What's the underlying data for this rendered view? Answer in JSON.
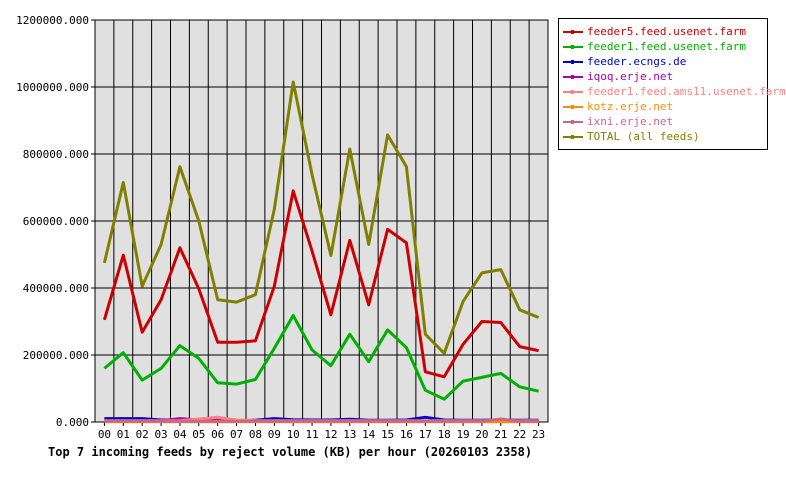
{
  "chart_data": {
    "type": "line",
    "xlabel": "Top 7 incoming feeds by reject volume (KB) per hour (20260103 2358)",
    "ylabel": "",
    "ylim": [
      0,
      1200000
    ],
    "yticks": [
      "0.000",
      "200000.000",
      "400000.000",
      "600000.000",
      "800000.000",
      "1000000.000",
      "1200000.000"
    ],
    "ytick_values": [
      0,
      200000,
      400000,
      600000,
      800000,
      1000000,
      1200000
    ],
    "categories": [
      "00",
      "01",
      "02",
      "03",
      "04",
      "05",
      "06",
      "07",
      "08",
      "09",
      "10",
      "11",
      "12",
      "13",
      "14",
      "15",
      "16",
      "17",
      "18",
      "19",
      "20",
      "21",
      "22",
      "23"
    ],
    "grid": true,
    "legend": "right",
    "series": [
      {
        "name": "feeder5.feed.usenet.farm",
        "color": "#cc0000",
        "values": [
          305000,
          498000,
          268000,
          365000,
          520000,
          398000,
          238000,
          238000,
          242000,
          405000,
          690000,
          510000,
          320000,
          542000,
          350000,
          575000,
          535000,
          150000,
          135000,
          232000,
          300000,
          297000,
          225000,
          213000
        ]
      },
      {
        "name": "feeder1.feed.usenet.farm",
        "color": "#00b000",
        "values": [
          160000,
          207000,
          125000,
          160000,
          228000,
          190000,
          117000,
          113000,
          127000,
          220000,
          318000,
          215000,
          168000,
          262000,
          180000,
          275000,
          222000,
          95000,
          68000,
          122000,
          133000,
          145000,
          105000,
          92000
        ]
      },
      {
        "name": "feeder.ecngs.de",
        "color": "#0000cc",
        "values": [
          10000,
          10000,
          10000,
          6000,
          6000,
          6000,
          5000,
          4000,
          5000,
          10000,
          7000,
          6000,
          6000,
          8000,
          5000,
          5000,
          6000,
          14000,
          6000,
          5000,
          5000,
          6000,
          5000,
          5000
        ]
      },
      {
        "name": "iqoq.erje.net",
        "color": "#aa00aa",
        "values": [
          3000,
          3000,
          3000,
          4000,
          10000,
          6000,
          6000,
          3000,
          3000,
          3000,
          3000,
          3000,
          3000,
          4000,
          3000,
          3000,
          3000,
          3000,
          3000,
          3000,
          3000,
          3000,
          3000,
          3000
        ]
      },
      {
        "name": "feeder1.feed.ams11.usenet.farm",
        "color": "#ff8080",
        "values": [
          4000,
          4000,
          4000,
          4000,
          4000,
          9000,
          14000,
          6000,
          4000,
          4000,
          4000,
          4000,
          4000,
          4000,
          4000,
          4000,
          4000,
          4000,
          4000,
          4000,
          4000,
          4000,
          4000,
          4000
        ]
      },
      {
        "name": "kotz.erje.net",
        "color": "#ff8c00",
        "values": [
          1000,
          1000,
          1000,
          1000,
          1000,
          1000,
          1000,
          1000,
          1000,
          1000,
          1000,
          1000,
          1000,
          1000,
          1000,
          1000,
          1000,
          1000,
          1000,
          1000,
          1000,
          1000,
          1000,
          1000
        ]
      },
      {
        "name": "ixni.erje.net",
        "color": "#cc6688",
        "values": [
          2000,
          2000,
          2000,
          2000,
          2000,
          2000,
          2000,
          2000,
          2000,
          2000,
          2000,
          2000,
          2000,
          2000,
          2000,
          2000,
          2000,
          2000,
          2000,
          2000,
          2000,
          9000,
          2000,
          2000
        ]
      },
      {
        "name": "TOTAL (all feeds)",
        "color": "#808000",
        "values": [
          475000,
          715000,
          405000,
          530000,
          762000,
          600000,
          365000,
          358000,
          380000,
          635000,
          1015000,
          738000,
          497000,
          815000,
          530000,
          857000,
          762000,
          262000,
          205000,
          360000,
          445000,
          455000,
          335000,
          312000
        ]
      }
    ]
  }
}
